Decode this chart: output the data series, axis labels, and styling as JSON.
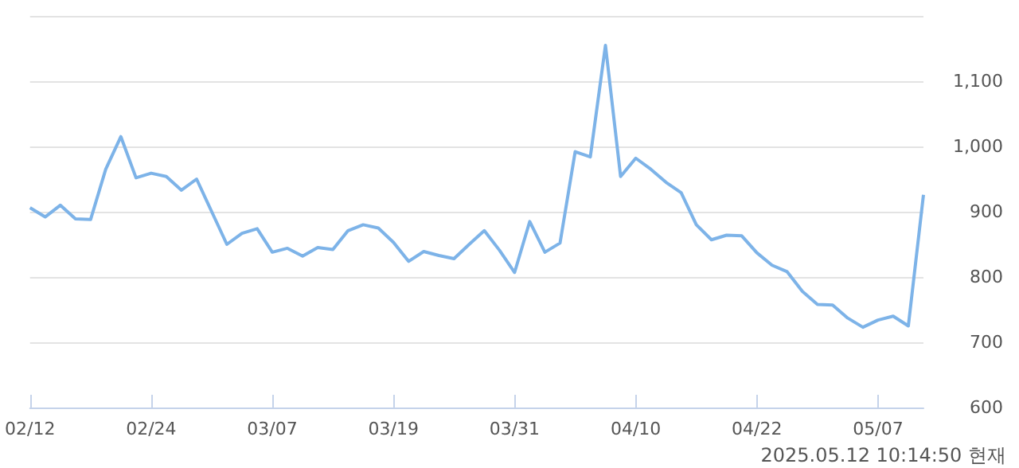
{
  "chart_data": {
    "type": "line",
    "categories": [
      "02/12",
      null,
      null,
      null,
      null,
      null,
      null,
      null,
      "02/24",
      null,
      null,
      null,
      null,
      null,
      null,
      null,
      "03/07",
      null,
      null,
      null,
      null,
      null,
      null,
      null,
      "03/19",
      null,
      null,
      null,
      null,
      null,
      null,
      null,
      "03/31",
      null,
      null,
      null,
      null,
      null,
      null,
      null,
      "04/10",
      null,
      null,
      null,
      null,
      null,
      null,
      null,
      "04/22",
      null,
      null,
      null,
      null,
      null,
      null,
      null,
      "05/07",
      null,
      null,
      null
    ],
    "series": [
      {
        "color": "#7db3e8",
        "values": [
          906,
          892,
          910,
          889,
          888,
          965,
          1015,
          952,
          959,
          954,
          933,
          950,
          900,
          850,
          867,
          874,
          838,
          844,
          832,
          845,
          842,
          871,
          880,
          875,
          853,
          824,
          839,
          833,
          828,
          850,
          871,
          841,
          807,
          885,
          838,
          852,
          992,
          984,
          1155,
          954,
          982,
          965,
          945,
          929,
          880,
          857,
          864,
          863,
          837,
          818,
          808,
          778,
          758,
          757,
          737,
          723,
          734,
          740,
          725,
          926
        ]
      }
    ],
    "ylim": [
      600,
      1200
    ],
    "yticks": [
      600,
      700,
      800,
      900,
      {
        "value": 1000,
        "label": "1,000"
      },
      {
        "value": 1100,
        "label": "1,100"
      },
      {
        "value": 1200,
        "label": null
      }
    ],
    "grid": "y",
    "marker": "none",
    "line_style": "solid",
    "annotations": [
      "2025.05.12 10:14:50 현재"
    ]
  }
}
